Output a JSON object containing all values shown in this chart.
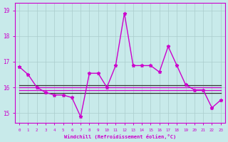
{
  "x": [
    0,
    1,
    2,
    3,
    4,
    5,
    6,
    7,
    8,
    9,
    10,
    11,
    12,
    13,
    14,
    15,
    16,
    17,
    18,
    19,
    20,
    21,
    22,
    23
  ],
  "y_main": [
    16.8,
    16.5,
    16.0,
    15.8,
    15.7,
    15.7,
    15.6,
    14.85,
    16.55,
    16.55,
    16.0,
    16.85,
    18.9,
    16.85,
    16.85,
    16.85,
    16.6,
    17.6,
    16.85,
    16.1,
    15.9,
    15.9,
    15.2,
    15.5
  ],
  "y_dark1": [
    16.08,
    16.08,
    16.08,
    16.08,
    16.08,
    16.08,
    16.08,
    16.08,
    16.08,
    16.08,
    16.08,
    16.08,
    16.08,
    16.08,
    16.08,
    16.08,
    16.08,
    16.08,
    16.08,
    16.08,
    16.08,
    16.08,
    16.08,
    16.08
  ],
  "y_dark2": [
    15.78,
    15.78,
    15.78,
    15.78,
    15.78,
    15.78,
    15.78,
    15.78,
    15.78,
    15.78,
    15.78,
    15.78,
    15.78,
    15.78,
    15.78,
    15.78,
    15.78,
    15.78,
    15.78,
    15.78,
    15.78,
    15.78,
    15.78,
    15.78
  ],
  "y_mag_low": [
    15.88,
    15.88,
    15.88,
    15.88,
    15.88,
    15.88,
    15.88,
    15.88,
    15.88,
    15.88,
    15.88,
    15.88,
    15.88,
    15.88,
    15.88,
    15.88,
    15.88,
    15.88,
    15.88,
    15.88,
    15.88,
    15.88,
    15.88,
    15.88
  ],
  "y_mag_high": [
    16.0,
    16.0,
    16.0,
    16.0,
    16.0,
    16.0,
    16.0,
    16.0,
    16.0,
    16.0,
    16.0,
    16.0,
    16.0,
    16.0,
    16.0,
    16.0,
    16.0,
    16.0,
    16.0,
    16.0,
    16.0,
    16.0,
    16.0,
    16.0
  ],
  "bg_color": "#c8eaea",
  "line_color": "#cc00cc",
  "dark_color": "#333333",
  "xlabel": "Windchill (Refroidissement éolien,°C)",
  "ylim": [
    14.6,
    19.3
  ],
  "xlim": [
    -0.5,
    23.5
  ],
  "yticks": [
    15,
    16,
    17,
    18,
    19
  ],
  "xticks": [
    0,
    1,
    2,
    3,
    4,
    5,
    6,
    7,
    8,
    9,
    10,
    11,
    12,
    13,
    14,
    15,
    16,
    17,
    18,
    19,
    20,
    21,
    22,
    23
  ],
  "grid_color": "#aacccc"
}
